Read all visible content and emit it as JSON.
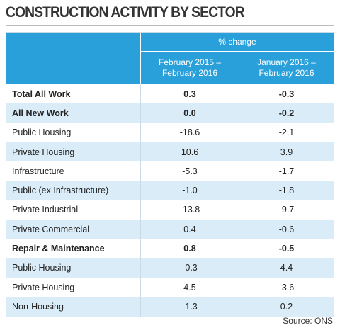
{
  "title": "CONSTRUCTION ACTIVITY BY SECTOR",
  "header": {
    "span_label": "% change",
    "columns": [
      "February 2015 –\nFebruary 2016",
      "January 2016 –\nFebruary 2016"
    ]
  },
  "rows": [
    {
      "bold": true,
      "cells": [
        "Total All Work",
        "0.3",
        "-0.3"
      ]
    },
    {
      "bold": true,
      "cells": [
        "All New Work",
        "0.0",
        "-0.2"
      ]
    },
    {
      "bold": false,
      "cells": [
        "Public Housing",
        "-18.6",
        "-2.1"
      ]
    },
    {
      "bold": false,
      "cells": [
        "Private Housing",
        "10.6",
        "3.9"
      ]
    },
    {
      "bold": false,
      "cells": [
        "Infrastructure",
        "-5.3",
        "-1.7"
      ]
    },
    {
      "bold": false,
      "cells": [
        "Public (ex Infrastructure)",
        "-1.0",
        "-1.8"
      ]
    },
    {
      "bold": false,
      "cells": [
        "Private Industrial",
        "-13.8",
        "-9.7"
      ]
    },
    {
      "bold": false,
      "cells": [
        "Private Commercial",
        "0.4",
        "-0.6"
      ]
    },
    {
      "bold": true,
      "cells": [
        "Repair & Maintenance",
        "0.8",
        "-0.5"
      ]
    },
    {
      "bold": false,
      "cells": [
        "Public Housing",
        "-0.3",
        "4.4"
      ]
    },
    {
      "bold": false,
      "cells": [
        "Private Housing",
        "4.5",
        "-3.6"
      ]
    },
    {
      "bold": false,
      "cells": [
        "Non-Housing",
        "-1.3",
        "0.2"
      ]
    }
  ],
  "source": "Source: ONS"
}
